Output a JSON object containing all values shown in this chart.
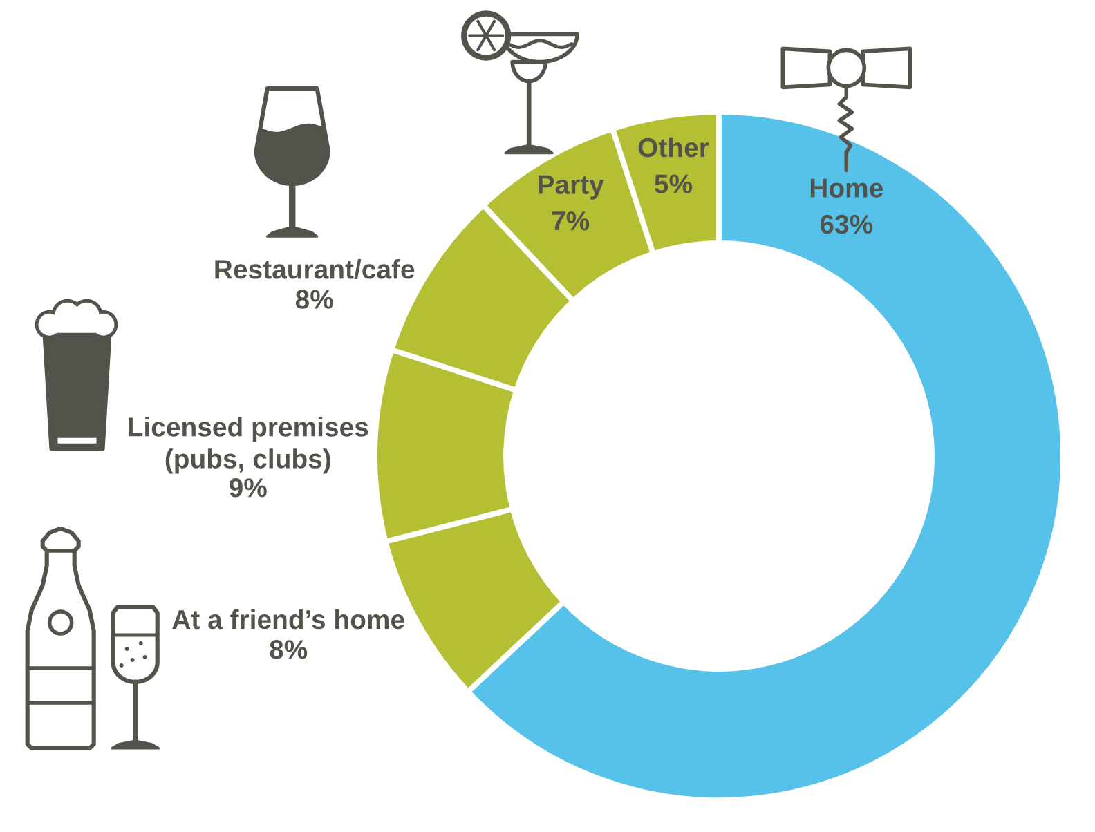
{
  "chart_data": {
    "type": "donut",
    "categories": [
      "Home",
      "At a friend’s home",
      "Licensed premises\n(pubs, clubs)",
      "Restaurant/cafe",
      "Party",
      "Other"
    ],
    "values": [
      63,
      8,
      9,
      8,
      7,
      5
    ],
    "value_labels": [
      "63%",
      "8%",
      "9%",
      "8%",
      "7%",
      "5%"
    ],
    "colors": [
      "#57c2e9",
      "#b5bf34",
      "#b5bf34",
      "#b5bf34",
      "#b5bf34",
      "#b5bf34"
    ]
  }
}
